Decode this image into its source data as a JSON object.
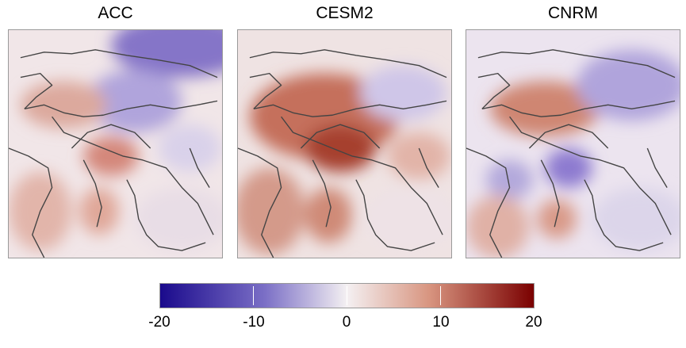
{
  "panels": [
    {
      "title": "ACC"
    },
    {
      "title": "CESM2"
    },
    {
      "title": "CNRM"
    }
  ],
  "colorbar": {
    "min": -20,
    "max": 20,
    "ticks": [
      "-20",
      "-10",
      "0",
      "10",
      "20"
    ],
    "colors": {
      "low": "#1a0a8c",
      "mid": "#f4f0f2",
      "high": "#7a0000"
    }
  }
}
